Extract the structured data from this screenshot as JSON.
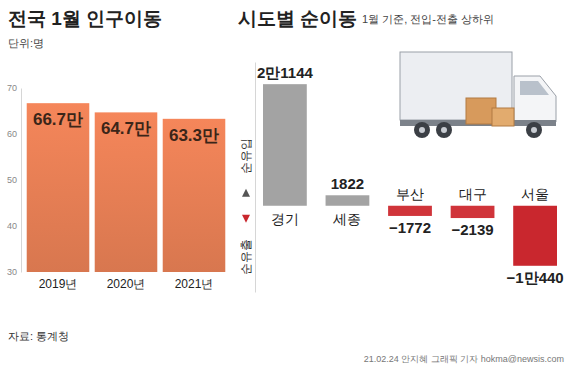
{
  "chart_data": [
    {
      "type": "bar",
      "title": "전국 1월 인구이동",
      "subtitle": "단위:명",
      "categories": [
        "2019년",
        "2020년",
        "2021년"
      ],
      "values": [
        66.7,
        64.7,
        63.3
      ],
      "value_labels": [
        "66.7만",
        "64.7만",
        "63.3만"
      ],
      "data_labels": true,
      "color": "#e07b52",
      "ylim": [
        30,
        70
      ],
      "yticks": [
        30,
        40,
        50,
        60,
        70
      ],
      "grid": false
    },
    {
      "type": "bar",
      "title": "시도별 순이동",
      "subtitle": "1월 기준, 전입-전출 상하위",
      "categories": [
        "경기",
        "세종",
        "부산",
        "대구",
        "서울"
      ],
      "values": [
        21144,
        1822,
        -1772,
        -2139,
        -10440
      ],
      "value_labels": [
        "2만1144",
        "1822",
        "−1772",
        "−2139",
        "−1만440"
      ],
      "colors": [
        "#a3a3a3",
        "#a3a3a3",
        "#d0343a",
        "#d0343a",
        "#c9272e"
      ],
      "data_labels": true,
      "tick_labels": "x",
      "ylim": [
        -15000,
        25000
      ],
      "annotations": [
        "순유입",
        "순유출"
      ]
    }
  ],
  "source": "자료: 통계청",
  "credit": "21.02.24 안지혜 그래픽 기자 hokma@newsis.com"
}
